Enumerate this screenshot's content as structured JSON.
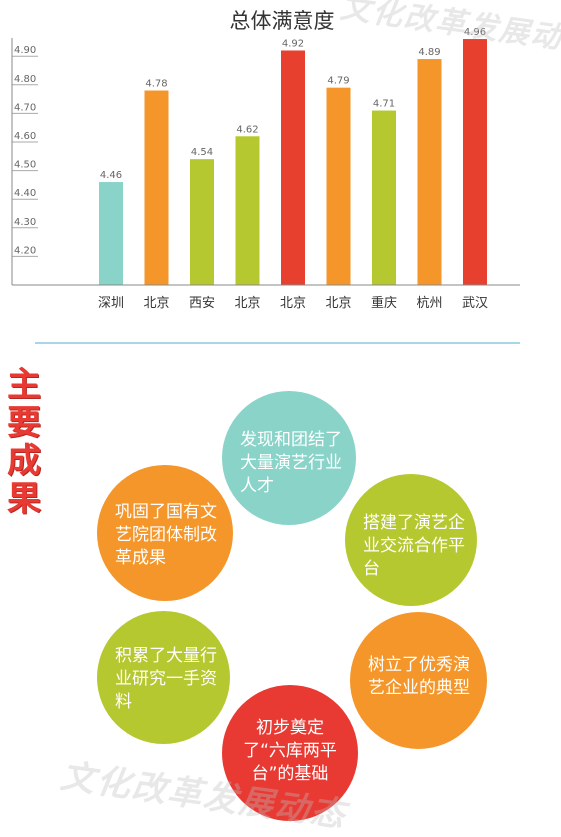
{
  "chart_data": {
    "type": "bar",
    "title": "总体满意度",
    "categories": [
      "深圳",
      "北京",
      "西安",
      "北京",
      "北京",
      "北京",
      "重庆",
      "杭州",
      "武汉"
    ],
    "values": [
      4.46,
      4.78,
      4.54,
      4.62,
      4.92,
      4.79,
      4.71,
      4.89,
      4.96
    ],
    "value_labels": [
      "4.46",
      "4.78",
      "4.54",
      "4.62",
      "4.92",
      "4.79",
      "4.71",
      "4.89",
      "4.96"
    ],
    "colors": [
      "#8ad3c9",
      "#f4962a",
      "#b6c82f",
      "#b6c82f",
      "#e8402f",
      "#f4962a",
      "#b6c82f",
      "#f4962a",
      "#e8402f"
    ],
    "y_ticks": [
      "4.20",
      "4.30",
      "4.40",
      "4.50",
      "4.60",
      "4.70",
      "4.80",
      "4.90"
    ],
    "ylim": [
      4.2,
      4.9
    ],
    "grid": false
  },
  "watermark": "文化改革发展动态",
  "section": {
    "title_chars": [
      "主",
      "要",
      "成",
      "果"
    ],
    "divider_color": "#a9d6e6"
  },
  "achievements": [
    {
      "text": "发现和团结了大量演艺行业人才",
      "color": "#8ad3c9"
    },
    {
      "text": "搭建了演艺企业交流合作平台",
      "color": "#b6c82f"
    },
    {
      "text": "树立了优秀演艺企业的典型",
      "color": "#f4962a"
    },
    {
      "text": "初步奠定了“六库两平台”的基础",
      "color": "#e83a33"
    },
    {
      "text": "积累了大量行业研究一手资料",
      "color": "#b6c82f"
    },
    {
      "text": "巩固了国有文艺院团体制改革成果",
      "color": "#f4962a"
    }
  ]
}
